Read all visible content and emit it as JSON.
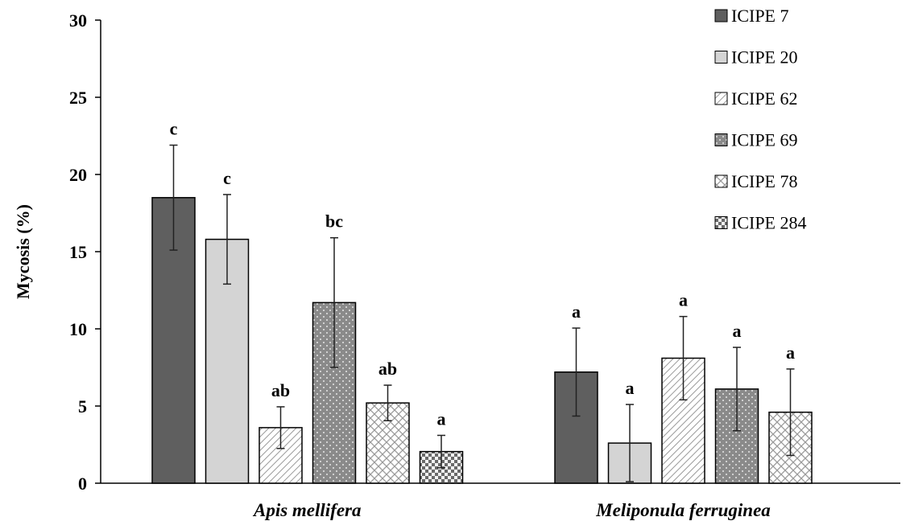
{
  "chart_data": {
    "type": "bar",
    "ylabel": "Mycosis (%)",
    "xlabel": "",
    "ylim": [
      0,
      30
    ],
    "yticks": [
      0,
      5,
      10,
      15,
      20,
      25,
      30
    ],
    "grid": false,
    "legend_position": "top-right",
    "categories": [
      "Apis mellifera",
      "Meliponula ferruginea"
    ],
    "series": [
      {
        "name": "ICIPE 7",
        "values": [
          18.5,
          7.2
        ],
        "errors": [
          3.4,
          2.85
        ],
        "letters": [
          "c",
          "a"
        ],
        "color": "#5f5f5f",
        "pattern": "solid-dark"
      },
      {
        "name": "ICIPE 20",
        "values": [
          15.8,
          2.6
        ],
        "errors": [
          2.9,
          2.5
        ],
        "letters": [
          "c",
          "a"
        ],
        "color": "#d4d4d4",
        "pattern": "solid-light"
      },
      {
        "name": "ICIPE 62",
        "values": [
          3.6,
          8.1
        ],
        "errors": [
          1.35,
          2.7
        ],
        "letters": [
          "ab",
          "a"
        ],
        "color": "#ffffff",
        "pattern": "diagonal"
      },
      {
        "name": "ICIPE 69",
        "values": [
          11.7,
          6.1
        ],
        "errors": [
          4.2,
          2.7
        ],
        "letters": [
          "bc",
          "a"
        ],
        "color": "#8c8c8c",
        "pattern": "dots"
      },
      {
        "name": "ICIPE 78",
        "values": [
          5.2,
          4.6
        ],
        "errors": [
          1.15,
          2.8
        ],
        "letters": [
          "ab",
          "a"
        ],
        "color": "#ffffff",
        "pattern": "crosshatch"
      },
      {
        "name": "ICIPE 284",
        "values": [
          2.05,
          null
        ],
        "errors": [
          1.05,
          null
        ],
        "letters": [
          "a",
          null
        ],
        "color": "#777777",
        "pattern": "checker"
      }
    ]
  }
}
